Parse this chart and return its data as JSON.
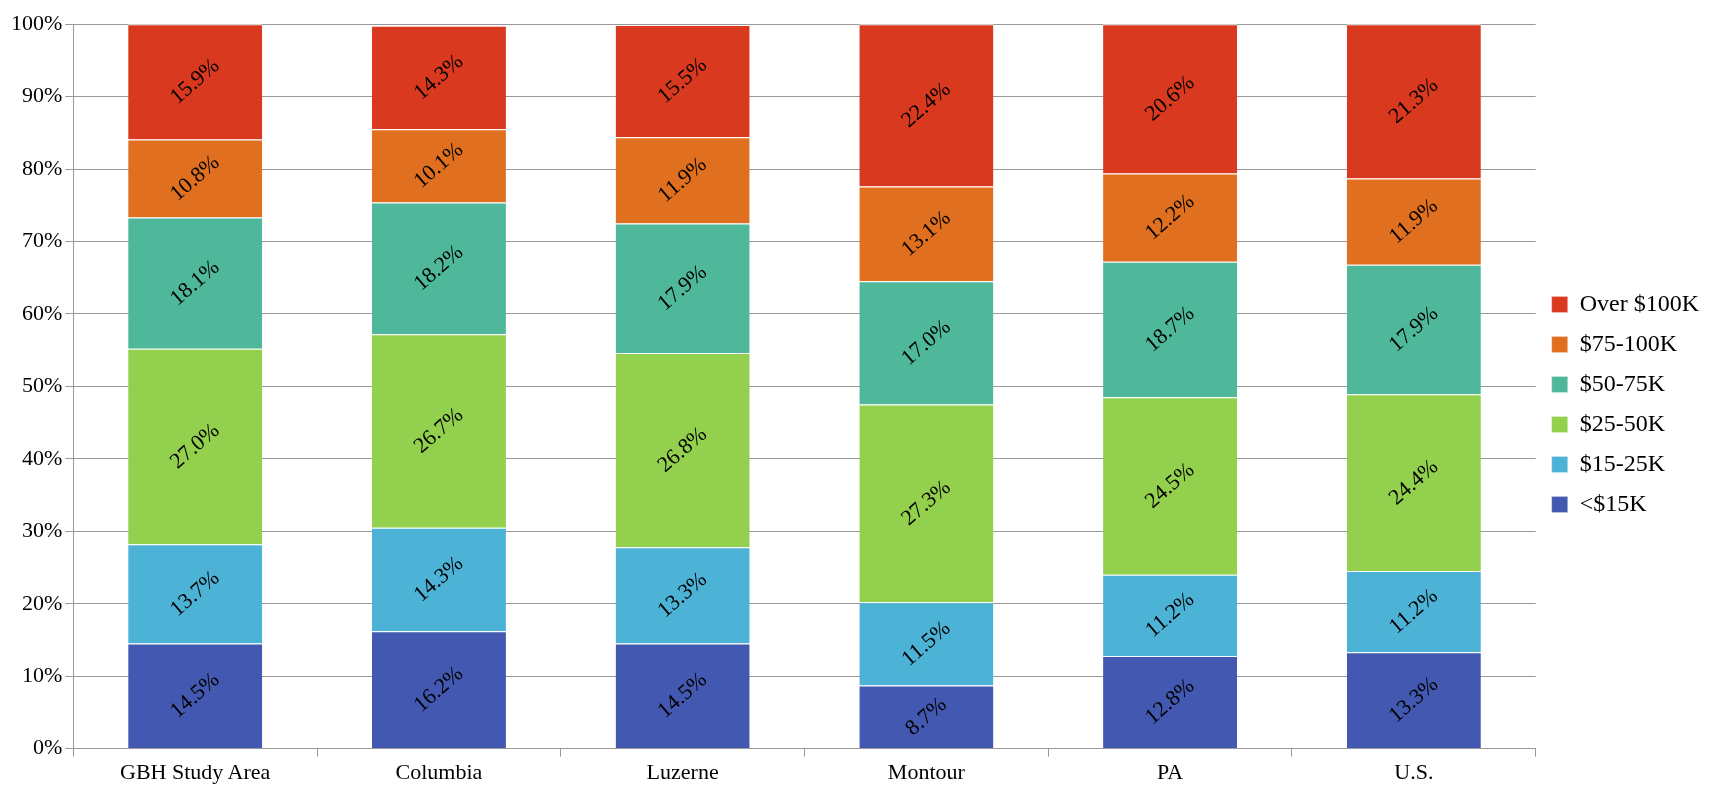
{
  "chart_data": {
    "type": "bar",
    "stacked": true,
    "grid": "y",
    "legend": "right",
    "categories": [
      "GBH Study Area",
      "Columbia",
      "Luzerne",
      "Montour",
      "PA",
      "U.S."
    ],
    "series": [
      {
        "name": "<$15K",
        "color": "#4358b0",
        "values": [
          14.5,
          16.2,
          14.5,
          8.7,
          12.8,
          13.3
        ],
        "value_labels": [
          "14.5%",
          "16.2%",
          "14.5%",
          "8.7%",
          "12.8%",
          "13.3%"
        ]
      },
      {
        "name": "$15-25K",
        "color": "#4db3d6",
        "values": [
          13.7,
          14.3,
          13.3,
          11.5,
          11.2,
          11.2
        ],
        "value_labels": [
          "13.7%",
          "14.3%",
          "13.3%",
          "11.5%",
          "11.2%",
          "11.2%"
        ]
      },
      {
        "name": "$25-50K",
        "color": "#92d04e",
        "values": [
          27.0,
          26.7,
          26.8,
          27.3,
          24.5,
          24.4
        ],
        "value_labels": [
          "27.0%",
          "26.7%",
          "26.8%",
          "27.3%",
          "24.5%",
          "24.4%"
        ]
      },
      {
        "name": "$50-75K",
        "color": "#4fb89b",
        "values": [
          18.1,
          18.2,
          17.9,
          17.0,
          18.7,
          17.9
        ],
        "value_labels": [
          "18.1%",
          "18.2%",
          "17.9%",
          "17.0%",
          "18.7%",
          "17.9%"
        ]
      },
      {
        "name": "$75-100K",
        "color": "#e07020",
        "values": [
          10.8,
          10.1,
          11.9,
          13.1,
          12.2,
          11.9
        ],
        "value_labels": [
          "10.8%",
          "10.1%",
          "11.9%",
          "13.1%",
          "12.2%",
          "11.9%"
        ]
      },
      {
        "name": "Over $100K",
        "color": "#d9391f",
        "values": [
          15.9,
          14.3,
          15.5,
          22.4,
          20.6,
          21.3
        ],
        "value_labels": [
          "15.9%",
          "14.3%",
          "15.5%",
          "22.4%",
          "20.6%",
          "21.3%"
        ]
      }
    ],
    "ylim": [
      0,
      100
    ],
    "yticks": [
      {
        "value": 0,
        "label": "0%"
      },
      {
        "value": 10,
        "label": "10%"
      },
      {
        "value": 20,
        "label": "20%"
      },
      {
        "value": 30,
        "label": "30%"
      },
      {
        "value": 40,
        "label": "40%"
      },
      {
        "value": 50,
        "label": "50%"
      },
      {
        "value": 60,
        "label": "60%"
      },
      {
        "value": 70,
        "label": "70%"
      },
      {
        "value": 80,
        "label": "80%"
      },
      {
        "value": 90,
        "label": "90%"
      },
      {
        "value": 100,
        "label": "100%"
      }
    ]
  }
}
